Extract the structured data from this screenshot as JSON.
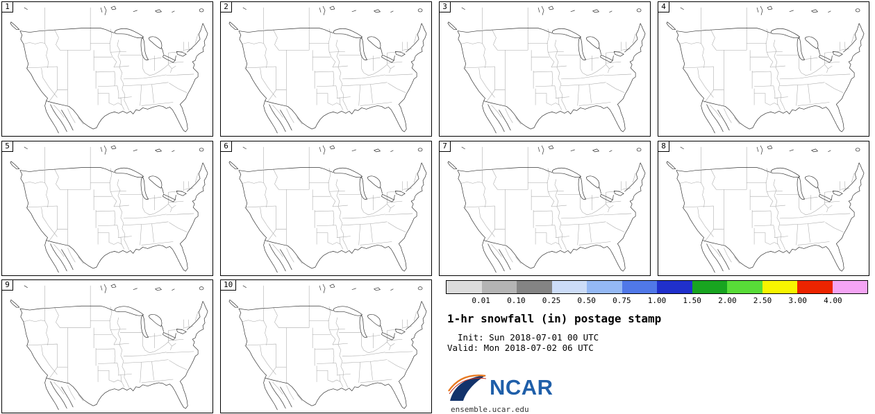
{
  "panels": [
    {
      "label": "1"
    },
    {
      "label": "2"
    },
    {
      "label": "3"
    },
    {
      "label": "4"
    },
    {
      "label": "5"
    },
    {
      "label": "6"
    },
    {
      "label": "7"
    },
    {
      "label": "8"
    },
    {
      "label": "9"
    },
    {
      "label": "10"
    }
  ],
  "colorbar": {
    "tick_labels": [
      "0.01",
      "0.10",
      "0.25",
      "0.50",
      "0.75",
      "1.00",
      "1.50",
      "2.00",
      "2.50",
      "3.00",
      "4.00"
    ],
    "colors": [
      "#dcdcdc",
      "#b4b4b4",
      "#848484",
      "#ccdcf8",
      "#94b8f4",
      "#5078e8",
      "#2030cc",
      "#18a420",
      "#58dc38",
      "#f8f400",
      "#ec2400",
      "#f4a4f4"
    ]
  },
  "info": {
    "title": "1-hr snowfall (in) postage stamp",
    "init_line": "Init: Sun 2018-07-01 00 UTC",
    "valid_line": "Valid: Mon 2018-07-02 06 UTC",
    "logo_text": "NCAR",
    "website": "ensemble.ucar.edu"
  },
  "chart_data": {
    "type": "map",
    "subtype": "ensemble-postage-stamp",
    "title": "1-hr snowfall (in) postage stamp",
    "panel_count": 10,
    "members": [
      "1",
      "2",
      "3",
      "4",
      "5",
      "6",
      "7",
      "8",
      "9",
      "10"
    ],
    "variable": "1-hr snowfall (in)",
    "init": "Sun 2018-07-01 00 UTC",
    "valid": "Mon 2018-07-02 06 UTC",
    "colorbar_boundaries_in": [
      0.01,
      0.1,
      0.25,
      0.5,
      0.75,
      1.0,
      1.5,
      2.0,
      2.5,
      3.0,
      4.0
    ],
    "snowfall_values": "none (all member maps blank - no snowfall depicted)",
    "region": "Continental United States",
    "legend_position": "bottom-right block"
  }
}
